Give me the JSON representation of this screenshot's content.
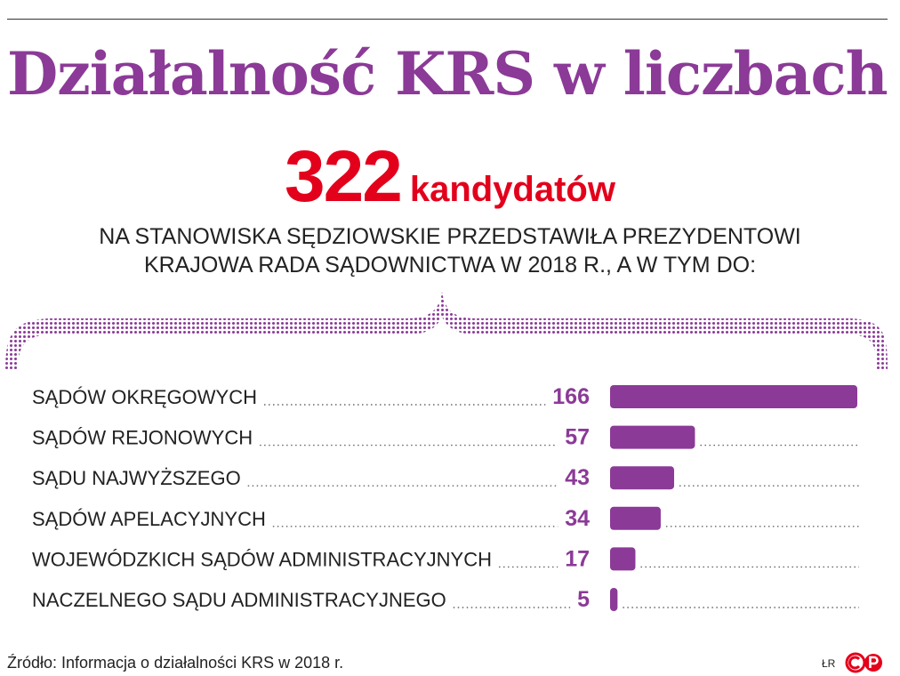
{
  "header": {
    "title": "Działalność KRS w liczbach",
    "big_number": "322",
    "big_label": "kandydatów",
    "subtitle_line1": "NA STANOWISKA SĘDZIOWSKIE PRZEDSTAWIŁA PREZYDENTOWI",
    "subtitle_line2": "KRAJOWA RADA SĄDOWNICTWA W 2018 R., A W TYM DO:"
  },
  "colors": {
    "accent": "#8b3a97",
    "highlight": "#e3001b",
    "text": "#222222"
  },
  "chart_data": {
    "type": "bar",
    "orientation": "horizontal",
    "categories": [
      "SĄDÓW OKRĘGOWYCH",
      "SĄDÓW REJONOWYCH",
      "SĄDU NAJWYŻSZEGO",
      "SĄDÓW APELACYJNYCH",
      "WOJEWÓDZKICH SĄDÓW ADMINISTRACYJNYCH",
      "NACZELNEGO SĄDU ADMINISTRACYJNEGO"
    ],
    "values": [
      166,
      57,
      43,
      34,
      17,
      5
    ],
    "value_labels": [
      "166",
      "57",
      "43",
      "34",
      "17",
      "5"
    ],
    "xlim": [
      0,
      166
    ]
  },
  "footer": {
    "source": "Źródło: Informacja o działalności KRS w 2018 r.",
    "author": "ŁR",
    "logo_text": "CP"
  }
}
